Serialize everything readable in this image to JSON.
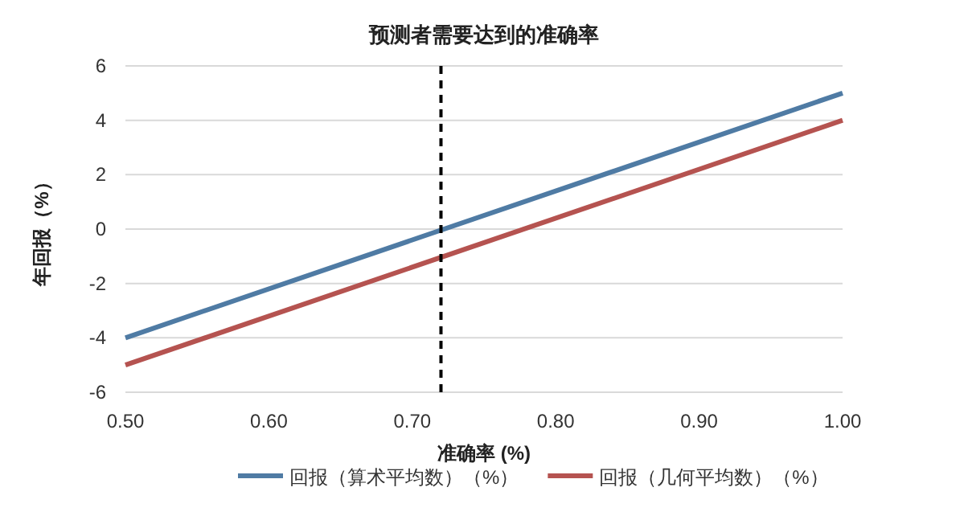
{
  "chart_data": {
    "type": "line",
    "title": "预测者需要达到的准确率",
    "xlabel": "准确率 (%)",
    "ylabel": "年回报（%）",
    "x": [
      0.5,
      1.0
    ],
    "series": [
      {
        "name": "回报（算术平均数）（%）",
        "color": "#4f7ba4",
        "values": [
          -4,
          5
        ]
      },
      {
        "name": "回报（几何平均数）（%）",
        "color": "#b55350",
        "values": [
          -5,
          4
        ]
      }
    ],
    "xlim": [
      0.5,
      1.0
    ],
    "xticks": [
      {
        "value": 0.5,
        "label": "0.50"
      },
      {
        "value": 0.6,
        "label": "0.60"
      },
      {
        "value": 0.7,
        "label": "0.70"
      },
      {
        "value": 0.8,
        "label": "0.80"
      },
      {
        "value": 0.9,
        "label": "0.90"
      },
      {
        "value": 1.0,
        "label": "1.00"
      }
    ],
    "ylim": [
      -6,
      6
    ],
    "yticks": [
      -6,
      -4,
      -2,
      0,
      2,
      4,
      6
    ],
    "ref_lines": [
      {
        "axis": "x",
        "value": 0.72,
        "color": "#000000",
        "line_style": "dashed"
      }
    ],
    "grid": "y",
    "legend": "bottom",
    "marker": "none",
    "line_style": "solid"
  }
}
